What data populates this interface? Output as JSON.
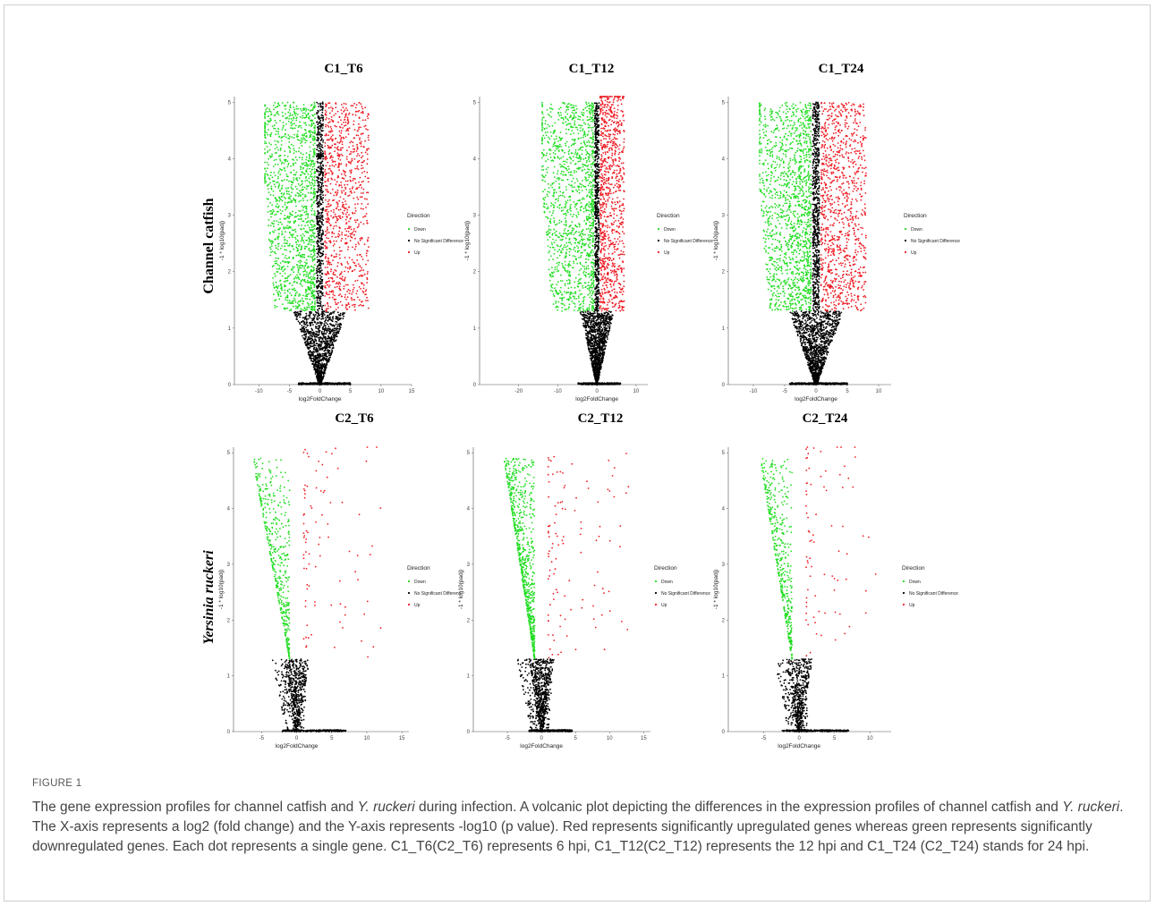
{
  "row_labels": [
    "Channel catfish",
    "Yersinia ruckeri"
  ],
  "caption": {
    "label": "FIGURE 1",
    "segments": [
      {
        "text": "The gene expression profiles for channel catfish and ",
        "italic": false
      },
      {
        "text": "Y. ruckeri",
        "italic": true
      },
      {
        "text": " during infection. A volcanic plot depicting the differences in the expression profiles of channel catfish and ",
        "italic": false
      },
      {
        "text": "Y. ruckeri",
        "italic": true
      },
      {
        "text": ". The X-axis represents a log2 (fold change) and the Y-axis represents -log10 (p value). Red represents significantly upregulated genes whereas green represents significantly downregulated genes. Each dot represents a single gene. C1_T6(C2_T6) represents 6 hpi, C1_T12(C2_T12) represents the 12 hpi and C1_T24 (C2_T24) stands for 24 hpi.",
        "italic": false
      }
    ]
  },
  "colors": {
    "down": "#22dd22",
    "nosig": "#000000",
    "up": "#ee1c24"
  },
  "chart_data": [
    {
      "type": "scatter",
      "title": "C1_T6",
      "xlabel": "log2FoldChange",
      "ylabel": "-1 * log10(padj)",
      "xlim": [
        -14,
        15
      ],
      "ylim": [
        0,
        5.1
      ],
      "xticks": [
        -10,
        -5,
        0,
        5,
        10,
        15
      ],
      "yticks": [
        0,
        1,
        2,
        3,
        4,
        5
      ],
      "legend": {
        "title": "Direction",
        "entries": [
          "Down",
          "No Significant Difference",
          "Up"
        ]
      },
      "series": [
        {
          "name": "Down",
          "range_x": [
            -9,
            -0.8
          ],
          "y_min": 1.3,
          "y_max": 5,
          "approx_points": 1400
        },
        {
          "name": "No Significant Difference",
          "range_x": [
            -6,
            5
          ],
          "y_min": 0,
          "y_max": 5,
          "approx_points": 2000
        },
        {
          "name": "Up",
          "range_x": [
            0.8,
            8
          ],
          "y_min": 1.3,
          "y_max": 5,
          "approx_points": 900
        }
      ]
    },
    {
      "type": "scatter",
      "title": "C1_T12",
      "xlabel": "log2FoldChange",
      "ylabel": "-1 * log10(padj)",
      "xlim": [
        -30,
        13
      ],
      "ylim": [
        0,
        5.1
      ],
      "xticks": [
        -20,
        -10,
        0,
        10
      ],
      "yticks": [
        0,
        1,
        2,
        3,
        4,
        5
      ],
      "legend": {
        "title": "Direction",
        "entries": [
          "Down",
          "No Significant Difference",
          "Up"
        ]
      },
      "series": [
        {
          "name": "Down",
          "range_x": [
            -14,
            -0.8
          ],
          "y_min": 1.3,
          "y_max": 5,
          "approx_points": 1300
        },
        {
          "name": "No Significant Difference",
          "range_x": [
            -8,
            6
          ],
          "y_min": 0,
          "y_max": 5,
          "approx_points": 2000
        },
        {
          "name": "Up",
          "range_x": [
            0.8,
            7
          ],
          "y_min": 1.3,
          "y_max": 5.2,
          "approx_points": 900
        }
      ]
    },
    {
      "type": "scatter",
      "title": "C1_T24",
      "xlabel": "log2FoldChange",
      "ylabel": "-1 * log10(padj)",
      "xlim": [
        -14,
        12
      ],
      "ylim": [
        0,
        5.1
      ],
      "xticks": [
        -10,
        -5,
        0,
        5,
        10
      ],
      "yticks": [
        0,
        1,
        2,
        3,
        4,
        5
      ],
      "legend": {
        "title": "Direction",
        "entries": [
          "Down",
          "No Significant Difference",
          "Up"
        ]
      },
      "series": [
        {
          "name": "Down",
          "range_x": [
            -9,
            -0.8
          ],
          "y_min": 1.3,
          "y_max": 5,
          "approx_points": 1400
        },
        {
          "name": "No Significant Difference",
          "range_x": [
            -7,
            5
          ],
          "y_min": 0,
          "y_max": 5,
          "approx_points": 2200
        },
        {
          "name": "Up",
          "range_x": [
            0.8,
            8
          ],
          "y_min": 1.3,
          "y_max": 5,
          "approx_points": 1000
        }
      ]
    },
    {
      "type": "scatter",
      "title": "C2_T6",
      "xlabel": "log2FoldChange",
      "ylabel": "-1 * log10(padj)",
      "xlim": [
        -9,
        16
      ],
      "ylim": [
        0,
        5.1
      ],
      "xticks": [
        -5,
        0,
        5,
        10,
        15
      ],
      "yticks": [
        0,
        1,
        2,
        3,
        4,
        5
      ],
      "legend": {
        "title": "Direction",
        "entries": [
          "Down",
          "No Significant Differenc",
          "Up"
        ]
      },
      "series": [
        {
          "name": "Down",
          "range_x": [
            -6.3,
            -1
          ],
          "y_min": 1.3,
          "y_max": 5,
          "approx_points": 450
        },
        {
          "name": "No Significant Difference",
          "range_x": [
            -3.5,
            7
          ],
          "y_min": 0,
          "y_max": 5,
          "approx_points": 600
        },
        {
          "name": "Up",
          "range_x": [
            1,
            12
          ],
          "y_min": 1.3,
          "y_max": 5.2,
          "approx_points": 90
        }
      ]
    },
    {
      "type": "scatter",
      "title": "C2_T12",
      "xlabel": "log2FoldChange",
      "ylabel": "-1 * log10(padj)",
      "xlim": [
        -10,
        16
      ],
      "ylim": [
        0,
        5.1
      ],
      "xticks": [
        -5,
        0,
        5,
        10,
        15
      ],
      "yticks": [
        0,
        1,
        2,
        3,
        4,
        5
      ],
      "legend": {
        "title": "Direction",
        "entries": [
          "Down",
          "No Significant Difference",
          "Up"
        ]
      },
      "series": [
        {
          "name": "Down",
          "range_x": [
            -5.5,
            -0.6
          ],
          "y_min": 1.3,
          "y_max": 5,
          "approx_points": 750
        },
        {
          "name": "No Significant Difference",
          "range_x": [
            -3,
            4.5
          ],
          "y_min": 0,
          "y_max": 5,
          "approx_points": 900
        },
        {
          "name": "Up",
          "range_x": [
            0.6,
            13
          ],
          "y_min": 1.3,
          "y_max": 5,
          "approx_points": 110
        }
      ]
    },
    {
      "type": "scatter",
      "title": "C2_T24",
      "xlabel": "log2FoldChange",
      "ylabel": "-1 * log10(padj)",
      "xlim": [
        -10,
        13
      ],
      "ylim": [
        0,
        5.1
      ],
      "xticks": [
        -5,
        0,
        5,
        10
      ],
      "yticks": [
        0,
        1,
        2,
        3,
        4,
        5
      ],
      "legend": {
        "title": "Direction",
        "entries": [
          "Down",
          "No Significant Difference",
          "Up"
        ]
      },
      "series": [
        {
          "name": "Down",
          "range_x": [
            -5.5,
            -1
          ],
          "y_min": 1.3,
          "y_max": 5,
          "approx_points": 450
        },
        {
          "name": "No Significant Difference",
          "range_x": [
            -4,
            7
          ],
          "y_min": 0,
          "y_max": 5,
          "approx_points": 600
        },
        {
          "name": "Up",
          "range_x": [
            1,
            11
          ],
          "y_min": 1.3,
          "y_max": 5.2,
          "approx_points": 80
        }
      ]
    }
  ]
}
